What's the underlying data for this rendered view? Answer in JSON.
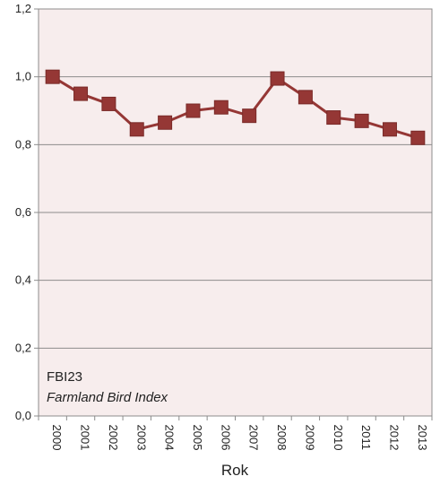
{
  "chart_data": {
    "type": "line",
    "title": "",
    "xlabel": "Rok",
    "ylabel": "",
    "categories": [
      "2000",
      "2001",
      "2002",
      "2003",
      "2004",
      "2005",
      "2006",
      "2007",
      "2008",
      "2009",
      "2010",
      "2011",
      "2012",
      "2013"
    ],
    "series": [
      {
        "values": [
          1.0,
          0.95,
          0.92,
          0.845,
          0.865,
          0.9,
          0.91,
          0.885,
          0.995,
          0.94,
          0.88,
          0.87,
          0.845,
          0.82
        ],
        "color": "#953735",
        "marker": "square"
      }
    ],
    "ylim": [
      0,
      1.2
    ],
    "yticks": [
      "0,0",
      "0,2",
      "0,4",
      "0,6",
      "0,8",
      "1,0",
      "1,2"
    ],
    "ytick_values": [
      0,
      0.2,
      0.4,
      0.6,
      0.8,
      1.0,
      1.2
    ],
    "grid": true,
    "legend": "none",
    "annotation": {
      "line1": "FBI23",
      "line2": "Farmland Bird Index"
    },
    "colors": {
      "plot_background": "#f7eded",
      "gridline": "#8c8c8c",
      "series": "#953735"
    }
  }
}
